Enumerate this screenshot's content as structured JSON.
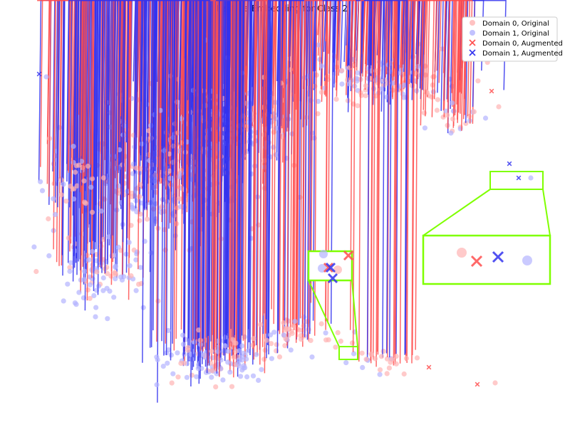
{
  "chart_data": {
    "type": "scatter",
    "title": "Feature Embedding for Class 2",
    "axes_visible": false,
    "legend": {
      "position": "top-right",
      "entries": [
        "Domain 0, Original",
        "Domain 1, Original",
        "Domain 0, Augmented",
        "Domain 1, Augmented"
      ]
    },
    "colors": {
      "domain0": "#ff4d4d",
      "domain1": "#3333ee",
      "domain0_light": "#ffb3b3",
      "domain1_light": "#b3b3ff",
      "highlight": "#7fff00"
    },
    "series_styles": [
      {
        "marker": "circle",
        "color": "#ffb3b3"
      },
      {
        "marker": "circle",
        "color": "#b3b3ff"
      },
      {
        "marker": "x",
        "color": "#ff4d4d"
      },
      {
        "marker": "x",
        "color": "#3333ee"
      }
    ],
    "clusters": [
      {
        "name": "upper-left-mass",
        "center": [
          300,
          240
        ],
        "spread": [
          120,
          70
        ]
      },
      {
        "name": "upper-right-arm",
        "center": [
          560,
          120
        ],
        "spread": [
          110,
          40
        ]
      },
      {
        "name": "lower-cluster",
        "center": [
          330,
          510
        ],
        "spread": [
          90,
          35
        ]
      },
      {
        "name": "lower-tail",
        "center": [
          560,
          505
        ],
        "spread": [
          60,
          18
        ]
      }
    ],
    "insets": [
      {
        "name": "inset-right",
        "points": [
          {
            "series": 0,
            "x": 648,
            "y": 355
          },
          {
            "series": 2,
            "x": 669,
            "y": 367
          },
          {
            "series": 3,
            "x": 699,
            "y": 361
          },
          {
            "series": 1,
            "x": 740,
            "y": 366
          }
        ]
      },
      {
        "name": "inset-center",
        "points": [
          {
            "series": 1,
            "x": 454,
            "y": 357
          },
          {
            "series": 1,
            "x": 452,
            "y": 377
          },
          {
            "series": 0,
            "x": 474,
            "y": 379
          },
          {
            "series": 2,
            "x": 489,
            "y": 359
          },
          {
            "series": 2,
            "x": 461,
            "y": 376
          },
          {
            "series": 3,
            "x": 464,
            "y": 376
          },
          {
            "series": 3,
            "x": 467,
            "y": 391
          }
        ]
      }
    ]
  }
}
